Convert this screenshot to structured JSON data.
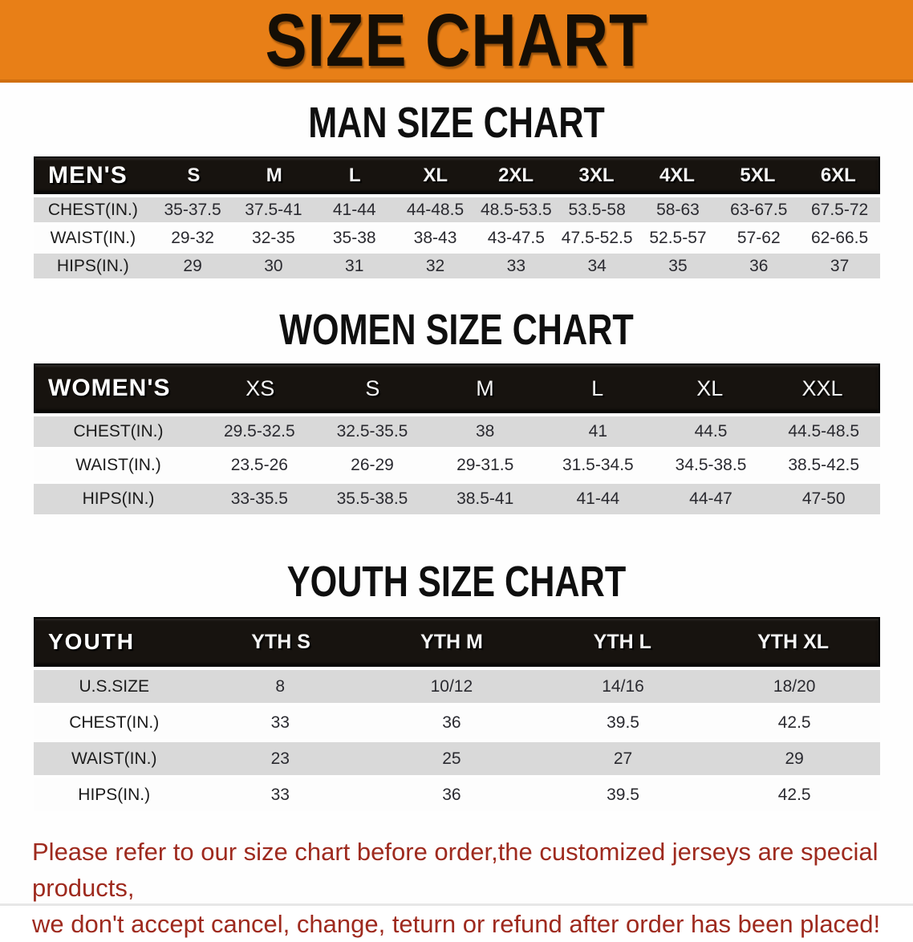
{
  "banner": {
    "title": "SIZE CHART"
  },
  "colors": {
    "banner_bg": "#e87f17",
    "table_header_bg": "#17130f",
    "table_header_text": "#ffffff",
    "row_gray": "#d9d9d9",
    "row_white": "#fdfdfd",
    "footer_text": "#9e2a1e"
  },
  "sections": [
    {
      "heading": "MAN SIZE CHART",
      "table": {
        "corner": "MEN'S",
        "columns": [
          "S",
          "M",
          "L",
          "XL",
          "2XL",
          "3XL",
          "4XL",
          "5XL",
          "6XL"
        ],
        "rows": [
          {
            "label": "CHEST(IN.)",
            "values": [
              "35-37.5",
              "37.5-41",
              "41-44",
              "44-48.5",
              "48.5-53.5",
              "53.5-58",
              "58-63",
              "63-67.5",
              "67.5-72"
            ]
          },
          {
            "label": "WAIST(IN.)",
            "values": [
              "29-32",
              "32-35",
              "35-38",
              "38-43",
              "43-47.5",
              "47.5-52.5",
              "52.5-57",
              "57-62",
              "62-66.5"
            ]
          },
          {
            "label": "HIPS(IN.)",
            "values": [
              "29",
              "30",
              "31",
              "32",
              "33",
              "34",
              "35",
              "36",
              "37"
            ]
          }
        ]
      }
    },
    {
      "heading": "WOMEN SIZE CHART",
      "table": {
        "corner": "WOMEN'S",
        "columns": [
          "XS",
          "S",
          "M",
          "L",
          "XL",
          "XXL"
        ],
        "rows": [
          {
            "label": "CHEST(IN.)",
            "values": [
              "29.5-32.5",
              "32.5-35.5",
              "38",
              "41",
              "44.5",
              "44.5-48.5"
            ]
          },
          {
            "label": "WAIST(IN.)",
            "values": [
              "23.5-26",
              "26-29",
              "29-31.5",
              "31.5-34.5",
              "34.5-38.5",
              "38.5-42.5"
            ]
          },
          {
            "label": "HIPS(IN.)",
            "values": [
              "33-35.5",
              "35.5-38.5",
              "38.5-41",
              "41-44",
              "44-47",
              "47-50"
            ]
          }
        ]
      }
    },
    {
      "heading": "YOUTH SIZE CHART",
      "table": {
        "corner": "YOUTH",
        "columns": [
          "YTH S",
          "YTH M",
          "YTH L",
          "YTH XL"
        ],
        "rows": [
          {
            "label": "U.S.SIZE",
            "values": [
              "8",
              "10/12",
              "14/16",
              "18/20"
            ]
          },
          {
            "label": "CHEST(IN.)",
            "values": [
              "33",
              "36",
              "39.5",
              "42.5"
            ]
          },
          {
            "label": "WAIST(IN.)",
            "values": [
              "23",
              "25",
              "27",
              "29"
            ]
          },
          {
            "label": "HIPS(IN.)",
            "values": [
              "33",
              "36",
              "39.5",
              "42.5"
            ]
          }
        ]
      }
    }
  ],
  "footer": {
    "line1": "Please refer to our size chart before order,the customized jerseys are special products,",
    "line2": "we don't accept cancel, change, teturn or refund after order has been placed!"
  }
}
